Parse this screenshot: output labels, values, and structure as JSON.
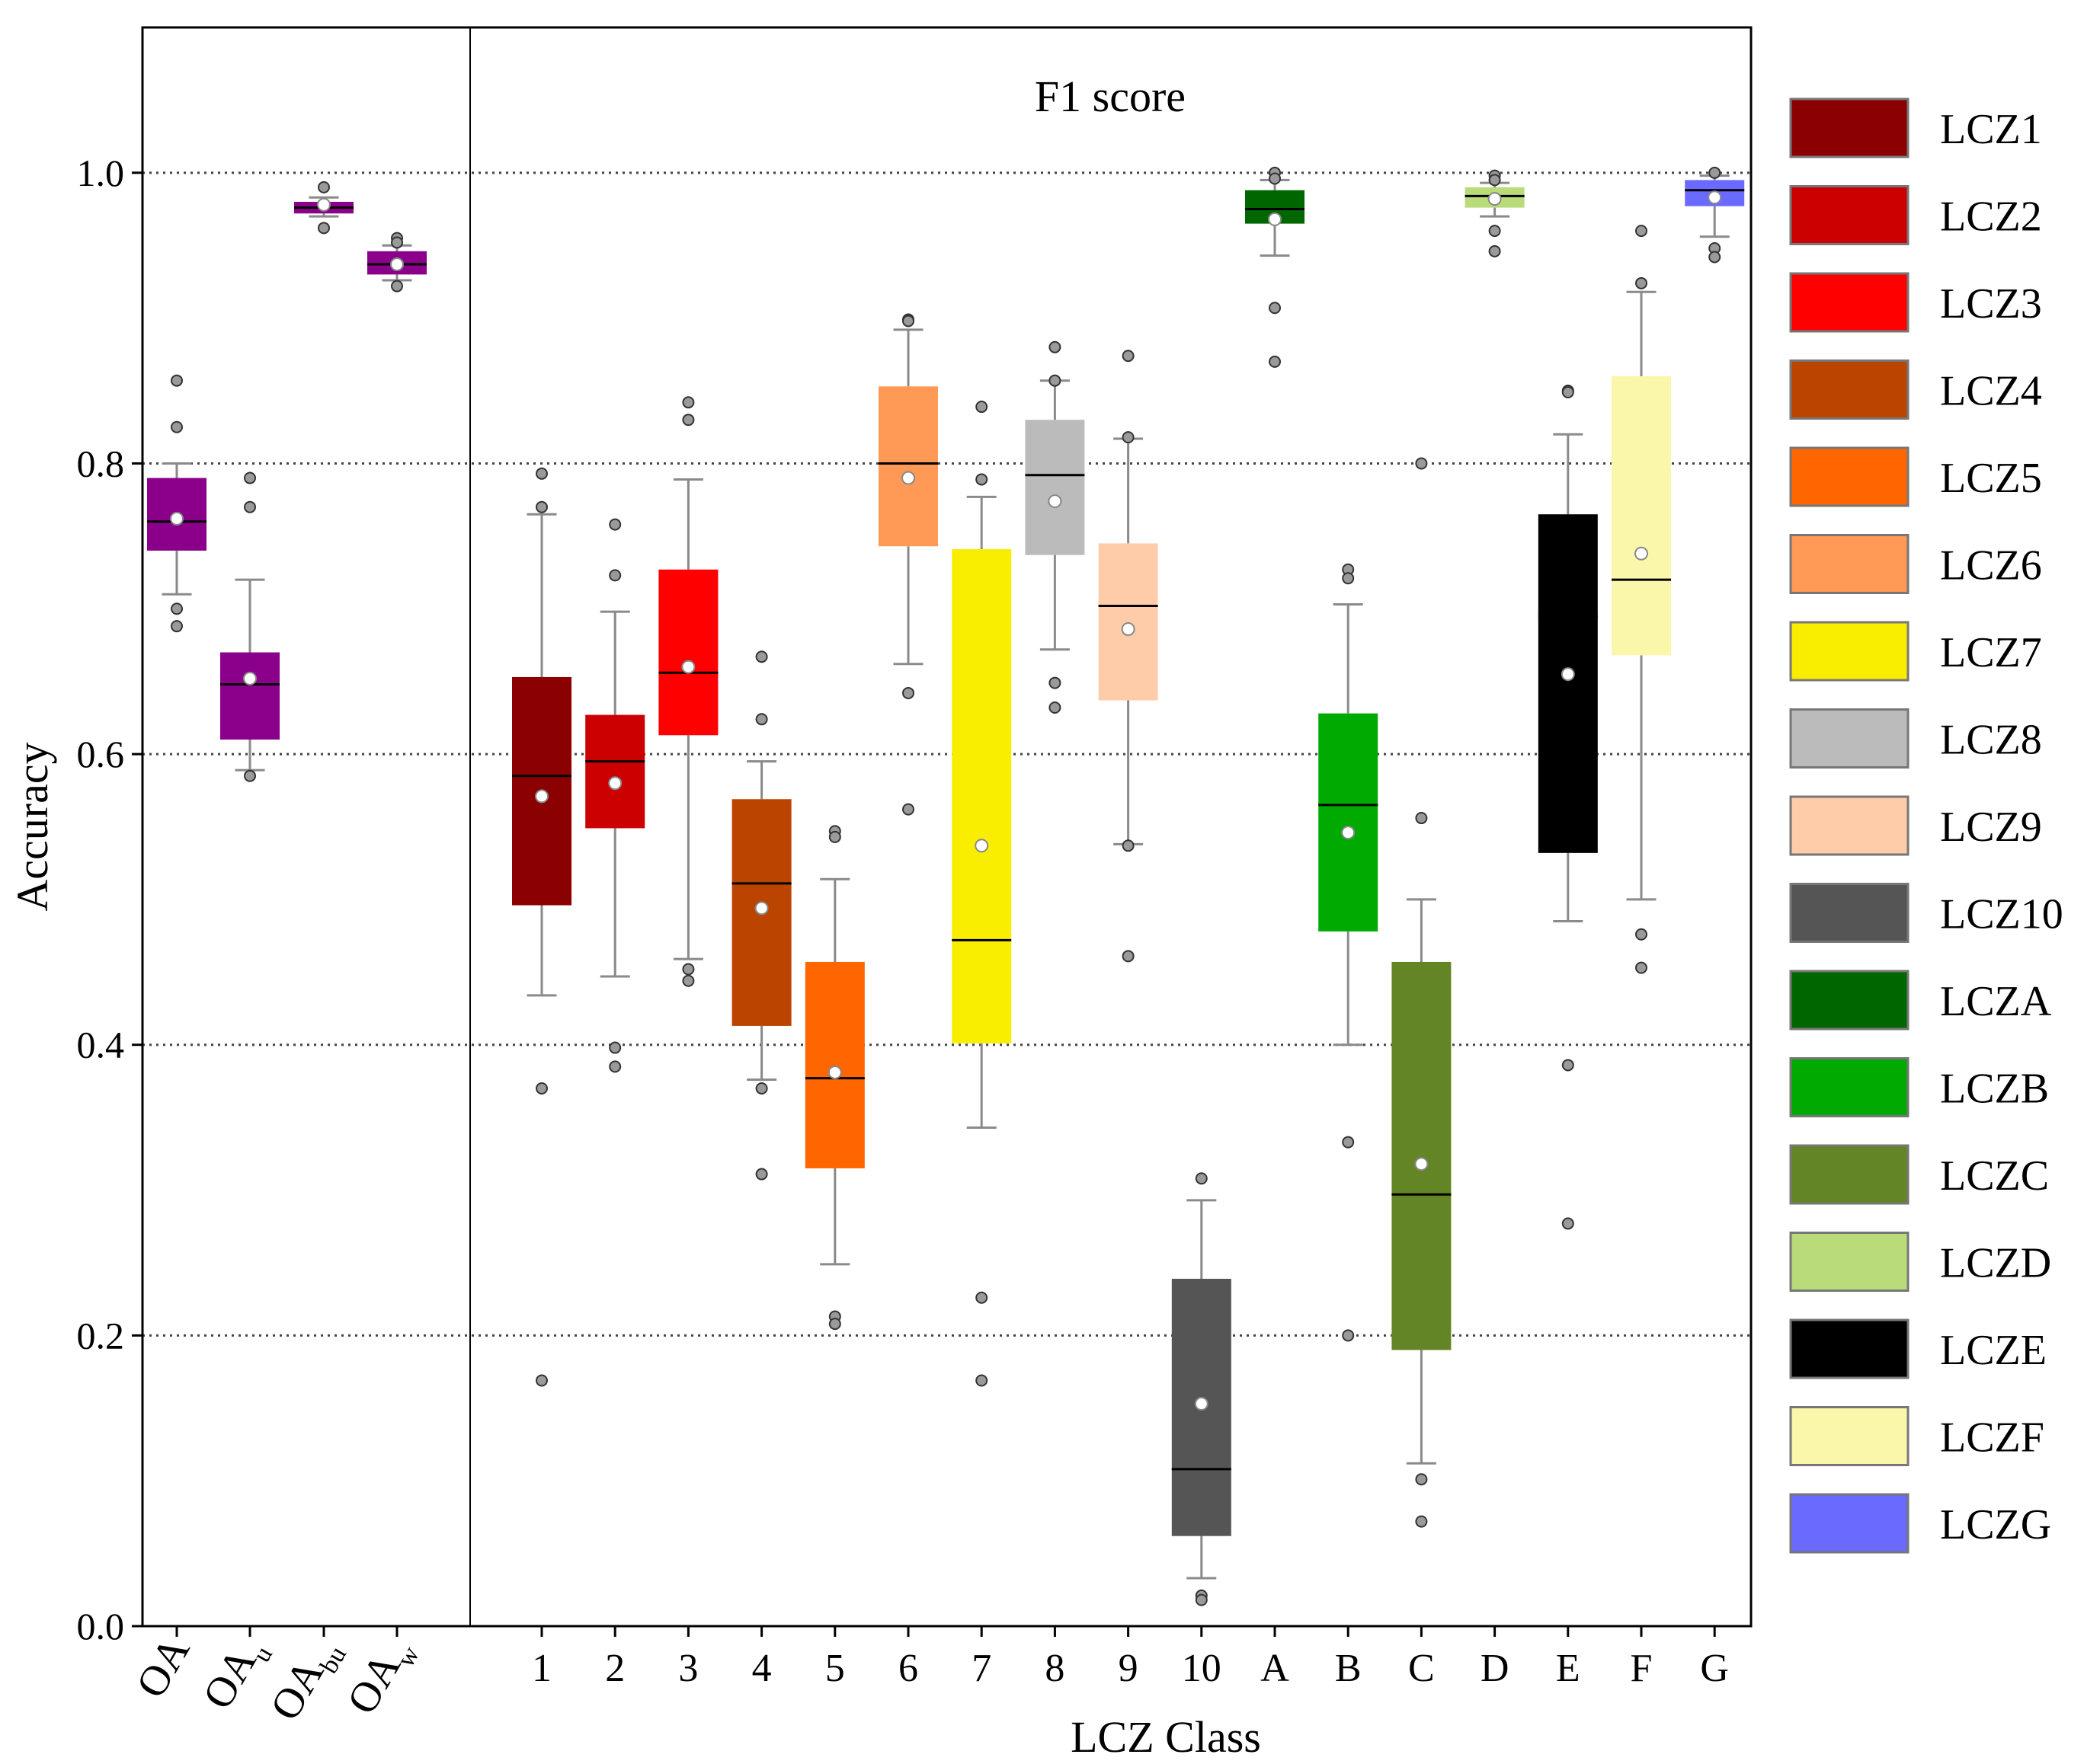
{
  "chart_data": {
    "type": "box",
    "title": "",
    "panel_title": "F1 score",
    "xlabel": "LCZ Class",
    "ylabel": "Accuracy",
    "ylim": [
      0.0,
      1.1
    ],
    "yticks": [
      "0.0",
      "0.2",
      "0.4",
      "0.6",
      "0.8",
      "1.0"
    ],
    "grid": "dotted horizontal at 0.2 intervals",
    "legend_position": "right",
    "oa_group": [
      {
        "label": "OA",
        "sub": "",
        "color": "#8B008B",
        "whislo": 0.71,
        "q1": 0.74,
        "median": 0.76,
        "q3": 0.79,
        "whishi": 0.8,
        "mean": 0.762,
        "outliers": [
          0.857,
          0.825,
          0.7,
          0.688
        ]
      },
      {
        "label": "OA",
        "sub": "u",
        "color": "#8B008B",
        "whislo": 0.589,
        "q1": 0.61,
        "median": 0.648,
        "q3": 0.67,
        "whishi": 0.72,
        "mean": 0.652,
        "outliers": [
          0.79,
          0.77,
          0.585
        ]
      },
      {
        "label": "OA",
        "sub": "bu",
        "color": "#8B008B",
        "whislo": 0.97,
        "q1": 0.972,
        "median": 0.976,
        "q3": 0.98,
        "whishi": 0.983,
        "mean": 0.978,
        "outliers": [
          0.99,
          0.962
        ]
      },
      {
        "label": "OA",
        "sub": "w",
        "color": "#8B008B",
        "whislo": 0.926,
        "q1": 0.93,
        "median": 0.937,
        "q3": 0.946,
        "whishi": 0.95,
        "mean": 0.937,
        "outliers": [
          0.955,
          0.952,
          0.922
        ]
      }
    ],
    "categories": [
      "1",
      "2",
      "3",
      "4",
      "5",
      "6",
      "7",
      "8",
      "9",
      "10",
      "A",
      "B",
      "C",
      "D",
      "E",
      "F",
      "G"
    ],
    "series": [
      {
        "name": "LCZ1",
        "color": "#8B0000",
        "whislo": 0.434,
        "q1": 0.496,
        "median": 0.585,
        "q3": 0.653,
        "whishi": 0.765,
        "mean": 0.571,
        "outliers": [
          0.793,
          0.77,
          0.37,
          0.169
        ]
      },
      {
        "name": "LCZ2",
        "color": "#CC0000",
        "whislo": 0.447,
        "q1": 0.549,
        "median": 0.595,
        "q3": 0.627,
        "whishi": 0.698,
        "mean": 0.58,
        "outliers": [
          0.758,
          0.723,
          0.398,
          0.385
        ]
      },
      {
        "name": "LCZ3",
        "color": "#FF0000",
        "whislo": 0.459,
        "q1": 0.613,
        "median": 0.656,
        "q3": 0.727,
        "whishi": 0.789,
        "mean": 0.66,
        "outliers": [
          0.842,
          0.83,
          0.452,
          0.444
        ]
      },
      {
        "name": "LCZ4",
        "color": "#BB4400",
        "whislo": 0.376,
        "q1": 0.413,
        "median": 0.511,
        "q3": 0.569,
        "whishi": 0.595,
        "mean": 0.494,
        "outliers": [
          0.667,
          0.624,
          0.37,
          0.311
        ]
      },
      {
        "name": "LCZ5",
        "color": "#FF6600",
        "whislo": 0.249,
        "q1": 0.315,
        "median": 0.377,
        "q3": 0.457,
        "whishi": 0.514,
        "mean": 0.381,
        "outliers": [
          0.547,
          0.543,
          0.213,
          0.208
        ]
      },
      {
        "name": "LCZ6",
        "color": "#FF9955",
        "whislo": 0.662,
        "q1": 0.743,
        "median": 0.8,
        "q3": 0.853,
        "whishi": 0.892,
        "mean": 0.79,
        "outliers": [
          0.899,
          0.898,
          0.642,
          0.562
        ]
      },
      {
        "name": "LCZ7",
        "color": "#FAEE00",
        "whislo": 0.343,
        "q1": 0.401,
        "median": 0.472,
        "q3": 0.741,
        "whishi": 0.777,
        "mean": 0.537,
        "outliers": [
          0.839,
          0.789,
          0.226,
          0.169
        ]
      },
      {
        "name": "LCZ8",
        "color": "#BBBBBB",
        "whislo": 0.672,
        "q1": 0.737,
        "median": 0.792,
        "q3": 0.83,
        "whishi": 0.857,
        "mean": 0.774,
        "outliers": [
          0.88,
          0.857,
          0.649,
          0.632
        ]
      },
      {
        "name": "LCZ9",
        "color": "#FFCCAA",
        "whislo": 0.538,
        "q1": 0.637,
        "median": 0.702,
        "q3": 0.745,
        "whishi": 0.817,
        "mean": 0.686,
        "outliers": [
          0.874,
          0.818,
          0.537,
          0.461
        ]
      },
      {
        "name": "LCZ10",
        "color": "#555555",
        "whislo": 0.033,
        "q1": 0.062,
        "median": 0.108,
        "q3": 0.239,
        "whishi": 0.293,
        "mean": 0.153,
        "outliers": [
          0.308,
          0.021,
          0.018
        ]
      },
      {
        "name": "LCZA",
        "color": "#006600",
        "whislo": 0.943,
        "q1": 0.965,
        "median": 0.975,
        "q3": 0.988,
        "whishi": 0.995,
        "mean": 0.968,
        "outliers": [
          1.0,
          0.996,
          0.907,
          0.87
        ]
      },
      {
        "name": "LCZB",
        "color": "#00AA00",
        "whislo": 0.4,
        "q1": 0.478,
        "median": 0.565,
        "q3": 0.628,
        "whishi": 0.703,
        "mean": 0.546,
        "outliers": [
          0.727,
          0.721,
          0.333,
          0.2
        ]
      },
      {
        "name": "LCZC",
        "color": "#648526",
        "whislo": 0.112,
        "q1": 0.19,
        "median": 0.297,
        "q3": 0.457,
        "whishi": 0.5,
        "mean": 0.318,
        "outliers": [
          0.8,
          0.556,
          0.101,
          0.072
        ]
      },
      {
        "name": "LCZD",
        "color": "#B9DB79",
        "whislo": 0.97,
        "q1": 0.976,
        "median": 0.984,
        "q3": 0.99,
        "whishi": 0.993,
        "mean": 0.982,
        "outliers": [
          0.998,
          0.995,
          0.96,
          0.946
        ]
      },
      {
        "name": "LCZE",
        "color": "#000000",
        "whislo": 0.485,
        "q1": 0.532,
        "median": 0.695,
        "q3": 0.765,
        "whishi": 0.82,
        "mean": 0.655,
        "outliers": [
          0.85,
          0.849,
          0.386,
          0.277
        ]
      },
      {
        "name": "LCZF",
        "color": "#FAF7AA",
        "whislo": 0.5,
        "q1": 0.668,
        "median": 0.72,
        "q3": 0.86,
        "whishi": 0.918,
        "mean": 0.738,
        "outliers": [
          0.96,
          0.924,
          0.476,
          0.453
        ]
      },
      {
        "name": "LCZG",
        "color": "#6A6AFF",
        "whislo": 0.956,
        "q1": 0.977,
        "median": 0.988,
        "q3": 0.995,
        "whishi": 0.998,
        "mean": 0.983,
        "outliers": [
          1.0,
          0.948,
          0.942
        ]
      }
    ]
  }
}
